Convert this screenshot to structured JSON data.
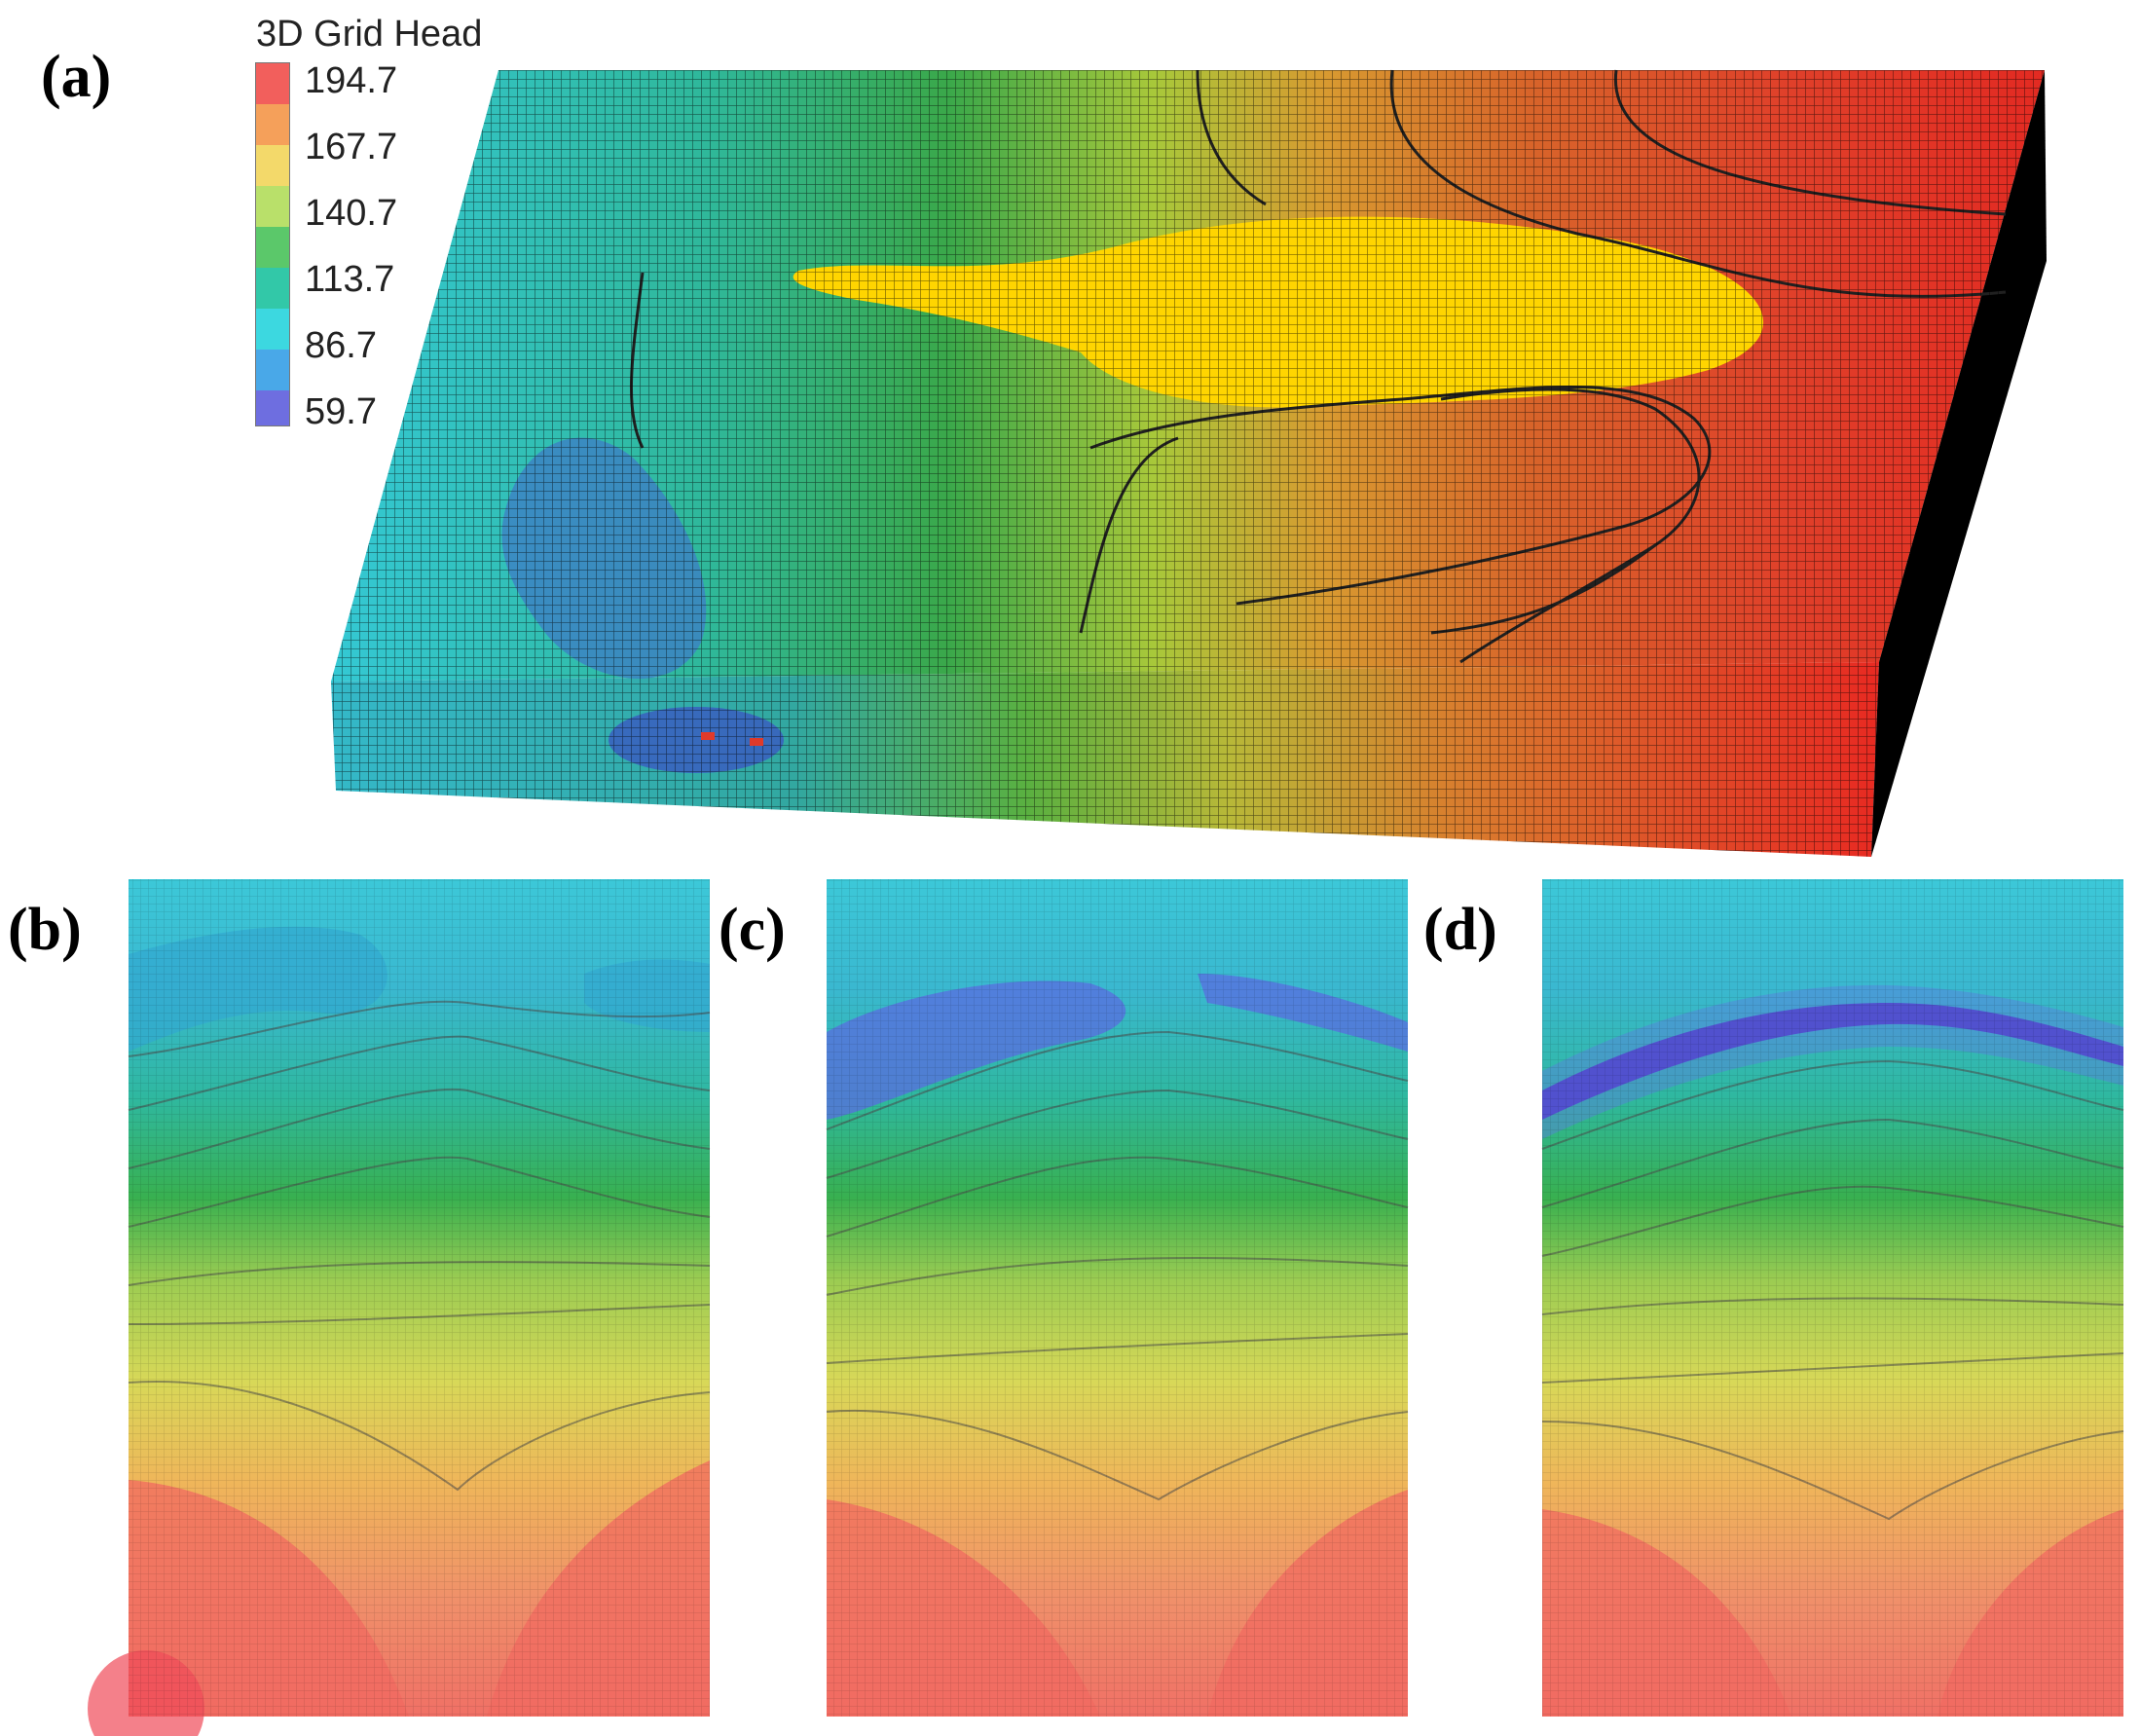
{
  "panels": {
    "a": "(a)",
    "b": "(b)",
    "c": "(c)",
    "d": "(d)"
  },
  "legend": {
    "title": "3D Grid Head",
    "ticks": [
      "194.7",
      "167.7",
      "140.7",
      "113.7",
      "86.7",
      "59.7"
    ],
    "colors": [
      "#f25f5c",
      "#f5a05a",
      "#f3d96a",
      "#b9e06a",
      "#5bc86a",
      "#32c8a8",
      "#3cd8e0",
      "#49a8e8",
      "#6e6ee0"
    ]
  },
  "palette": {
    "red": "#e8392a",
    "orange": "#ef8a4a",
    "yellow": "#ffd500",
    "green": "#33a845",
    "cyan": "#34c8d4",
    "blue": "#4a7fd0",
    "purple": "#4a2fc0",
    "side": "#000000"
  }
}
